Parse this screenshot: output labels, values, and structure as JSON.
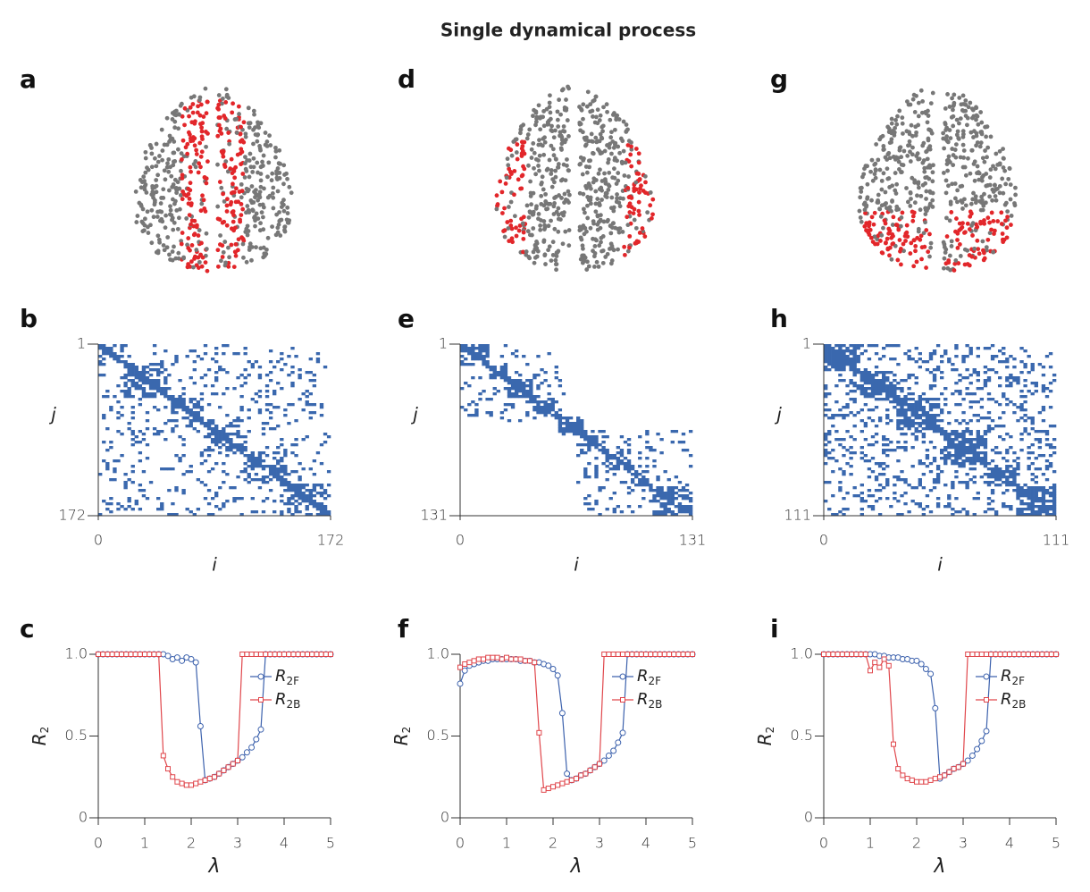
{
  "title": "Single dynamical process",
  "brains": [
    {
      "label": "a"
    },
    {
      "label": "d"
    },
    {
      "label": "g"
    }
  ],
  "matrices": [
    {
      "label": "b",
      "xticks": [
        0,
        172
      ],
      "yticks": [
        1,
        172
      ],
      "xlabel": "i",
      "ylabel": "j",
      "color": "#3a68ae"
    },
    {
      "label": "e",
      "xticks": [
        0,
        131
      ],
      "yticks": [
        1,
        131
      ],
      "xlabel": "i",
      "ylabel": "j",
      "color": "#3a68ae"
    },
    {
      "label": "h",
      "xticks": [
        0,
        111
      ],
      "yticks": [
        1,
        111
      ],
      "xlabel": "i",
      "ylabel": "j",
      "color": "#3a68ae"
    }
  ],
  "chart_data": [
    {
      "type": "line",
      "label": "c",
      "xlabel": "λ",
      "ylabel": "R2",
      "xlim": [
        0,
        5
      ],
      "xticks": [
        0,
        1,
        2,
        3,
        4,
        5
      ],
      "ylim": [
        0,
        1
      ],
      "yticks": [
        0,
        0.5,
        {
          "value": 1,
          "label": "1.0"
        }
      ],
      "x": [
        0,
        0.1,
        0.2,
        0.3,
        0.4,
        0.5,
        0.6,
        0.7,
        0.8,
        0.9,
        1,
        1.1,
        1.2,
        1.3,
        1.4,
        1.5,
        1.6,
        1.7,
        1.8,
        1.9,
        2,
        2.1,
        2.2,
        2.3,
        2.4,
        2.5,
        2.6,
        2.7,
        2.8,
        2.9,
        3,
        3.1,
        3.2,
        3.3,
        3.4,
        3.5,
        3.6,
        3.7,
        3.8,
        3.9,
        4,
        4.1,
        4.2,
        4.3,
        4.4,
        4.5,
        4.6,
        4.7,
        4.8,
        4.9,
        5
      ],
      "series": [
        {
          "name": "R2F",
          "color": "#3d62ad",
          "values": [
            1,
            1,
            1,
            1,
            1,
            1,
            1,
            1,
            1,
            1,
            1,
            1,
            1,
            1,
            1,
            0.99,
            0.97,
            0.98,
            0.96,
            0.98,
            0.97,
            0.95,
            0.56,
            0.23,
            0.24,
            0.25,
            0.27,
            0.29,
            0.31,
            0.33,
            0.35,
            0.37,
            0.4,
            0.43,
            0.48,
            0.54,
            1,
            1,
            1,
            1,
            1,
            1,
            1,
            1,
            1,
            1,
            1,
            1,
            1,
            1,
            1
          ]
        },
        {
          "name": "R2B",
          "color": "#e0474c",
          "values": [
            1,
            1,
            1,
            1,
            1,
            1,
            1,
            1,
            1,
            1,
            1,
            1,
            1,
            1,
            0.38,
            0.3,
            0.25,
            0.22,
            0.21,
            0.2,
            0.2,
            0.21,
            0.22,
            0.23,
            0.24,
            0.25,
            0.27,
            0.29,
            0.31,
            0.33,
            0.35,
            1,
            1,
            1,
            1,
            1,
            1,
            1,
            1,
            1,
            1,
            1,
            1,
            1,
            1,
            1,
            1,
            1,
            1,
            1,
            1
          ]
        }
      ]
    },
    {
      "type": "line",
      "label": "f",
      "xlabel": "λ",
      "ylabel": "R2",
      "xlim": [
        0,
        5
      ],
      "xticks": [
        0,
        1,
        2,
        3,
        4,
        5
      ],
      "ylim": [
        0,
        1
      ],
      "yticks": [
        0,
        0.5,
        {
          "value": 1,
          "label": "1.0"
        }
      ],
      "x": [
        0,
        0.1,
        0.2,
        0.3,
        0.4,
        0.5,
        0.6,
        0.7,
        0.8,
        0.9,
        1,
        1.1,
        1.2,
        1.3,
        1.4,
        1.5,
        1.6,
        1.7,
        1.8,
        1.9,
        2,
        2.1,
        2.2,
        2.3,
        2.4,
        2.5,
        2.6,
        2.7,
        2.8,
        2.9,
        3,
        3.1,
        3.2,
        3.3,
        3.4,
        3.5,
        3.6,
        3.7,
        3.8,
        3.9,
        4,
        4.1,
        4.2,
        4.3,
        4.4,
        4.5,
        4.6,
        4.7,
        4.8,
        4.9,
        5
      ],
      "series": [
        {
          "name": "R2F",
          "color": "#3d62ad",
          "values": [
            0.82,
            0.9,
            0.93,
            0.94,
            0.95,
            0.96,
            0.96,
            0.97,
            0.97,
            0.97,
            0.97,
            0.97,
            0.97,
            0.96,
            0.96,
            0.96,
            0.95,
            0.95,
            0.94,
            0.93,
            0.91,
            0.87,
            0.64,
            0.27,
            0.23,
            0.24,
            0.26,
            0.27,
            0.29,
            0.31,
            0.33,
            0.35,
            0.38,
            0.41,
            0.46,
            0.52,
            1,
            1,
            1,
            1,
            1,
            1,
            1,
            1,
            1,
            1,
            1,
            1,
            1,
            1,
            1
          ]
        },
        {
          "name": "R2B",
          "color": "#e0474c",
          "values": [
            0.92,
            0.94,
            0.95,
            0.96,
            0.97,
            0.97,
            0.98,
            0.98,
            0.98,
            0.97,
            0.98,
            0.97,
            0.97,
            0.97,
            0.96,
            0.96,
            0.95,
            0.52,
            0.17,
            0.18,
            0.19,
            0.2,
            0.21,
            0.22,
            0.23,
            0.24,
            0.26,
            0.27,
            0.29,
            0.31,
            0.33,
            1,
            1,
            1,
            1,
            1,
            1,
            1,
            1,
            1,
            1,
            1,
            1,
            1,
            1,
            1,
            1,
            1,
            1,
            1,
            1
          ]
        }
      ]
    },
    {
      "type": "line",
      "label": "i",
      "xlabel": "λ",
      "ylabel": "R2",
      "xlim": [
        0,
        5
      ],
      "xticks": [
        0,
        1,
        2,
        3,
        4,
        5
      ],
      "ylim": [
        0,
        1
      ],
      "yticks": [
        0,
        0.5,
        {
          "value": 1,
          "label": "1.0"
        }
      ],
      "x": [
        0,
        0.1,
        0.2,
        0.3,
        0.4,
        0.5,
        0.6,
        0.7,
        0.8,
        0.9,
        1,
        1.1,
        1.2,
        1.3,
        1.4,
        1.5,
        1.6,
        1.7,
        1.8,
        1.9,
        2,
        2.1,
        2.2,
        2.3,
        2.4,
        2.5,
        2.6,
        2.7,
        2.8,
        2.9,
        3,
        3.1,
        3.2,
        3.3,
        3.4,
        3.5,
        3.6,
        3.7,
        3.8,
        3.9,
        4,
        4.1,
        4.2,
        4.3,
        4.4,
        4.5,
        4.6,
        4.7,
        4.8,
        4.9,
        5
      ],
      "series": [
        {
          "name": "R2F",
          "color": "#3d62ad",
          "values": [
            1,
            1,
            1,
            1,
            1,
            1,
            1,
            1,
            1,
            1,
            1,
            1,
            0.99,
            0.99,
            0.98,
            0.98,
            0.98,
            0.97,
            0.97,
            0.96,
            0.96,
            0.94,
            0.91,
            0.88,
            0.67,
            0.24,
            0.26,
            0.28,
            0.3,
            0.31,
            0.33,
            0.35,
            0.38,
            0.42,
            0.47,
            0.53,
            1,
            1,
            1,
            1,
            1,
            1,
            1,
            1,
            1,
            1,
            1,
            1,
            1,
            1,
            1
          ]
        },
        {
          "name": "R2B",
          "color": "#e0474c",
          "values": [
            1,
            1,
            1,
            1,
            1,
            1,
            1,
            1,
            1,
            1,
            0.9,
            0.95,
            0.92,
            0.97,
            0.93,
            0.45,
            0.3,
            0.26,
            0.24,
            0.23,
            0.22,
            0.22,
            0.22,
            0.23,
            0.24,
            0.25,
            0.26,
            0.28,
            0.3,
            0.31,
            0.33,
            1,
            1,
            1,
            1,
            1,
            1,
            1,
            1,
            1,
            1,
            1,
            1,
            1,
            1,
            1,
            1,
            1,
            1,
            1,
            1
          ]
        }
      ]
    }
  ]
}
